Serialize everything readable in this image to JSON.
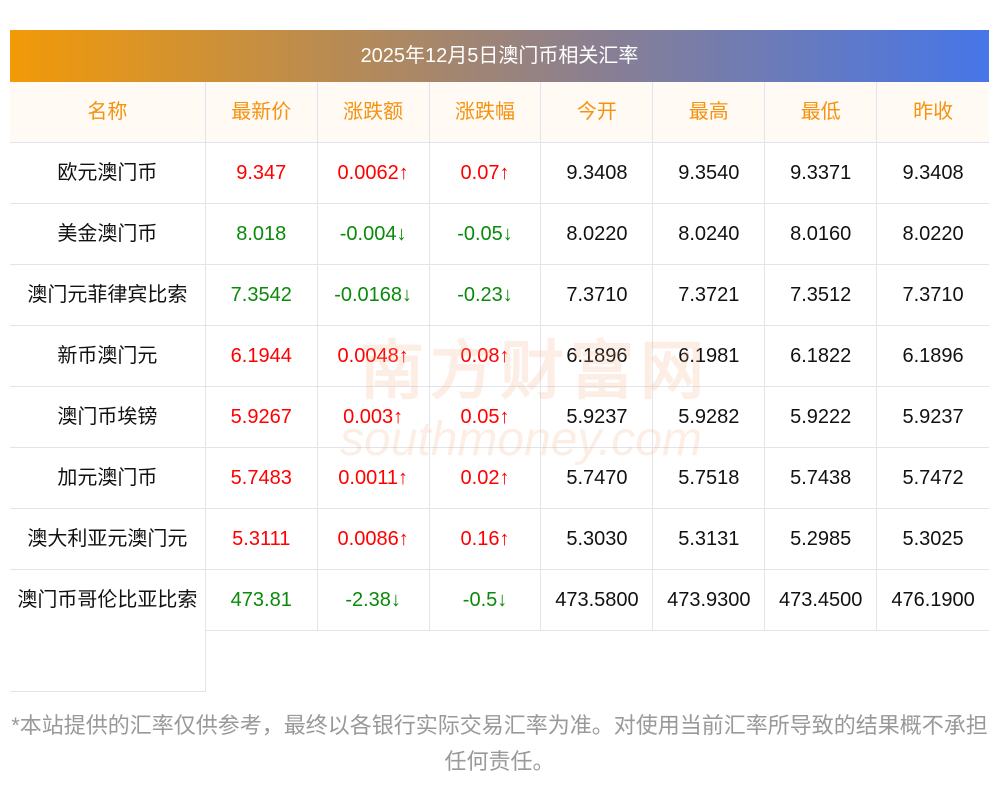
{
  "title": "2025年12月5日澳门币相关汇率",
  "headers": [
    "名称",
    "最新价",
    "涨跌额",
    "涨跌幅",
    "今开",
    "最高",
    "最低",
    "昨收"
  ],
  "rows": [
    {
      "name": "欧元澳门币",
      "latest": "9.347",
      "change": "0.0062↑",
      "pct": "0.07↑",
      "open": "9.3408",
      "high": "9.3540",
      "low": "9.3371",
      "prev": "9.3408",
      "dir": "up"
    },
    {
      "name": "美金澳门币",
      "latest": "8.018",
      "change": "-0.004↓",
      "pct": "-0.05↓",
      "open": "8.0220",
      "high": "8.0240",
      "low": "8.0160",
      "prev": "8.0220",
      "dir": "down"
    },
    {
      "name": "澳门元菲律宾比索",
      "latest": "7.3542",
      "change": "-0.0168↓",
      "pct": "-0.23↓",
      "open": "7.3710",
      "high": "7.3721",
      "low": "7.3512",
      "prev": "7.3710",
      "dir": "down"
    },
    {
      "name": "新币澳门元",
      "latest": "6.1944",
      "change": "0.0048↑",
      "pct": "0.08↑",
      "open": "6.1896",
      "high": "6.1981",
      "low": "6.1822",
      "prev": "6.1896",
      "dir": "up"
    },
    {
      "name": "澳门币埃镑",
      "latest": "5.9267",
      "change": "0.003↑",
      "pct": "0.05↑",
      "open": "5.9237",
      "high": "5.9282",
      "low": "5.9222",
      "prev": "5.9237",
      "dir": "up"
    },
    {
      "name": "加元澳门币",
      "latest": "5.7483",
      "change": "0.0011↑",
      "pct": "0.02↑",
      "open": "5.7470",
      "high": "5.7518",
      "low": "5.7438",
      "prev": "5.7472",
      "dir": "up"
    },
    {
      "name": "澳大利亚元澳门元",
      "latest": "5.3111",
      "change": "0.0086↑",
      "pct": "0.16↑",
      "open": "5.3030",
      "high": "5.3131",
      "low": "5.2985",
      "prev": "5.3025",
      "dir": "up"
    },
    {
      "name": "澳门币哥伦比亚比索",
      "latest": "473.81",
      "change": "-2.38↓",
      "pct": "-0.5↓",
      "open": "473.5800",
      "high": "473.9300",
      "low": "473.4500",
      "prev": "476.1900",
      "dir": "down"
    }
  ],
  "watermark": {
    "cn": "南方财富网",
    "en": "southmoney.com"
  },
  "note": "*本站提供的汇率仅供参考，最终以各银行实际交易汇率为准。对使用当前汇率所导致的结果概不承担任何责任。"
}
